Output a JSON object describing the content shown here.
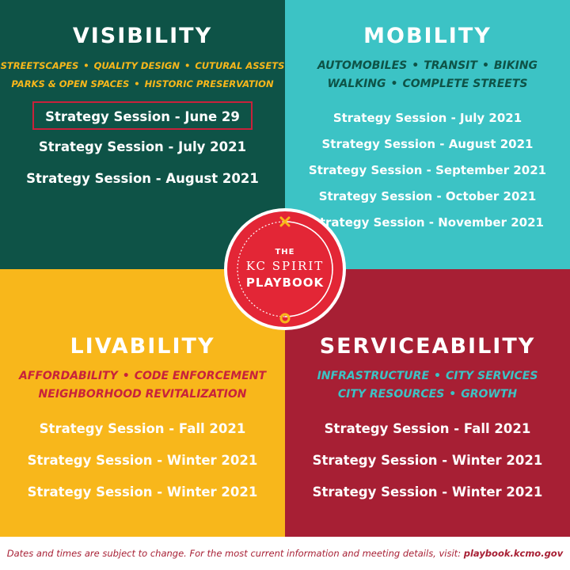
{
  "quadrants": {
    "visibility": {
      "title": "VISIBILITY",
      "topics_line1": [
        "STREETSCAPES",
        "QUALITY DESIGN",
        "CUTURAL ASSETS"
      ],
      "topics_line2": [
        "PARKS & OPEN SPACES",
        "HISTORIC PRESERVATION"
      ],
      "sessions": [
        "Strategy Session - June 29",
        "Strategy Session - July 2021",
        "Strategy Session - August 2021"
      ]
    },
    "mobility": {
      "title": "MOBILITY",
      "topics_line1": [
        "AUTOMOBILES",
        "TRANSIT",
        "BIKING"
      ],
      "topics_line2": [
        "WALKING",
        "COMPLETE STREETS"
      ],
      "sessions": [
        "Strategy Session - July 2021",
        "Strategy Session - August 2021",
        "Strategy Session - September 2021",
        "Strategy Session - October 2021",
        "Strategy Session - November 2021"
      ]
    },
    "livability": {
      "title": "LIVABILITY",
      "topics_line1": [
        "AFFORDABILITY",
        "CODE ENFORCEMENT"
      ],
      "topics_line2": [
        "NEIGHBORHOOD REVITALIZATION"
      ],
      "sessions": [
        "Strategy Session - Fall 2021",
        "Strategy Session - Winter 2021",
        "Strategy Session - Winter 2021"
      ]
    },
    "serviceability": {
      "title": "SERVICEABILITY",
      "topics_line1": [
        "INFRASTRUCTURE",
        "CITY SERVICES"
      ],
      "topics_line2": [
        "CITY RESOURCES",
        "GROWTH"
      ],
      "sessions": [
        "Strategy Session - Fall 2021",
        "Strategy Session - Winter 2021",
        "Strategy Session - Winter 2021"
      ]
    }
  },
  "logo": {
    "line1": "THE",
    "line2": "KC SPIRIT",
    "line3": "PLAYBOOK"
  },
  "footer": {
    "text": "Dates and times are subject to change. For the most current information and meeting details, visit: ",
    "link": "playbook.kcmo.gov"
  },
  "colors": {
    "visibility_bg": "#0e5347",
    "mobility_bg": "#3cc3c5",
    "livability_bg": "#f8b71b",
    "serviceability_bg": "#a71f34",
    "logo_red": "#e32636",
    "logo_marker": "#f8b71b"
  }
}
